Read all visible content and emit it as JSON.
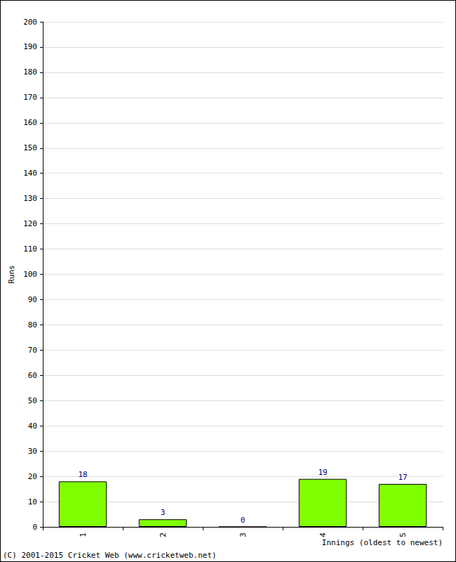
{
  "chart_data": {
    "type": "bar",
    "categories": [
      "1",
      "2",
      "3",
      "4",
      "5"
    ],
    "values": [
      18,
      3,
      0,
      19,
      17
    ],
    "color": "#80ff00",
    "ylim": [
      0,
      200
    ],
    "yticks": [
      0,
      10,
      20,
      30,
      40,
      50,
      60,
      70,
      80,
      90,
      100,
      110,
      120,
      130,
      140,
      150,
      160,
      170,
      180,
      190,
      200
    ],
    "grid": true,
    "data_labels": true,
    "x_label": "Innings (oldest to newest)",
    "y_label": "Runs",
    "annotation": "(C) 2001-2015 Cricket Web (www.cricketweb.net)"
  }
}
